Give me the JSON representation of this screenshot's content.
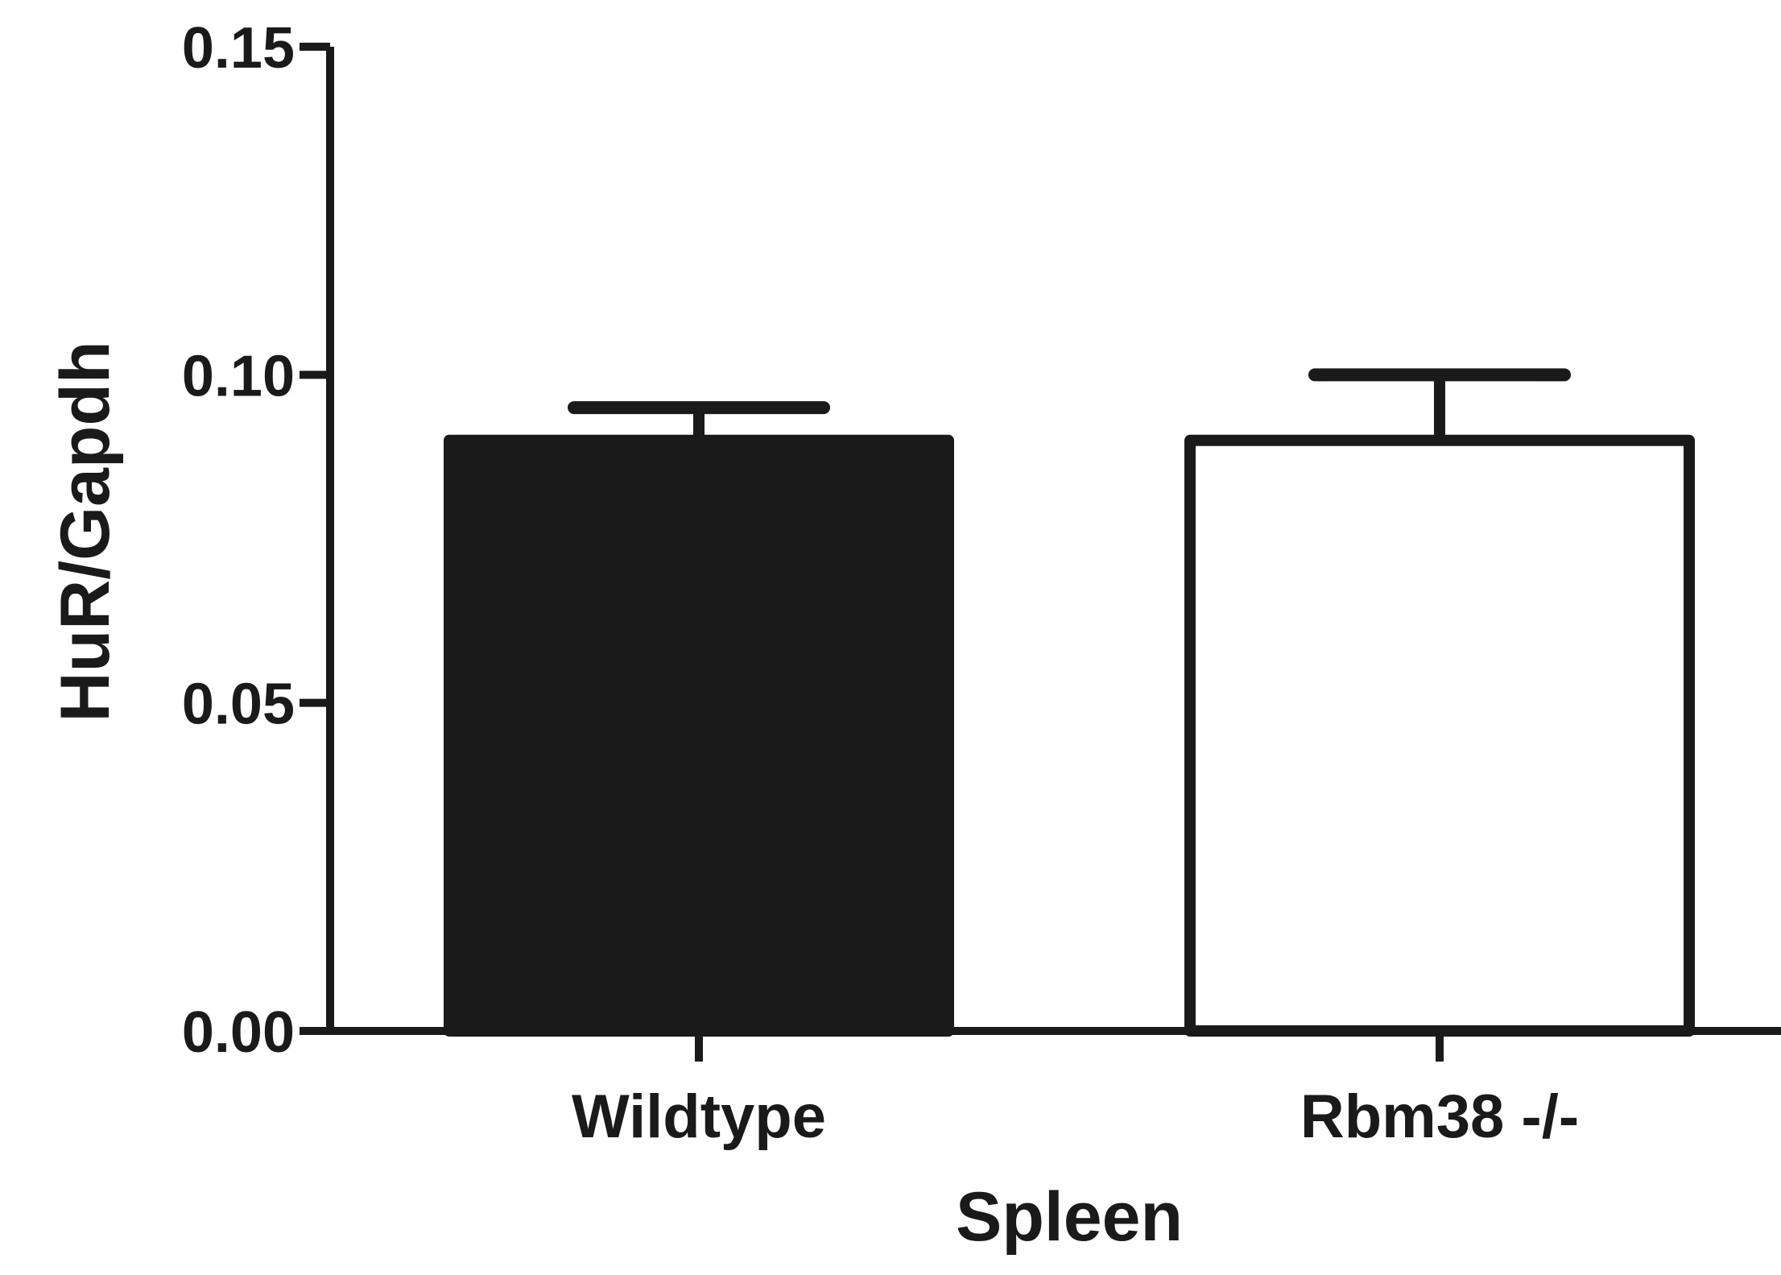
{
  "chart_data": {
    "type": "bar",
    "categories": [
      "Wildtype",
      "Rbm38 -/-"
    ],
    "values": [
      0.09,
      0.09
    ],
    "error_upper": [
      0.095,
      0.1
    ],
    "xlabel": "Spleen",
    "ylabel": "HuR/Gapdh",
    "ylim": [
      0,
      0.15
    ],
    "yticks": [
      0.0,
      0.05,
      0.1,
      0.15
    ],
    "ytick_labels": [
      "0.00",
      "0.05",
      "0.10",
      "0.15"
    ],
    "grid": false,
    "legend": "none",
    "bar_fills": [
      "#1a1a1a",
      "#ffffff"
    ],
    "stroke_color": "#1a1a1a"
  }
}
